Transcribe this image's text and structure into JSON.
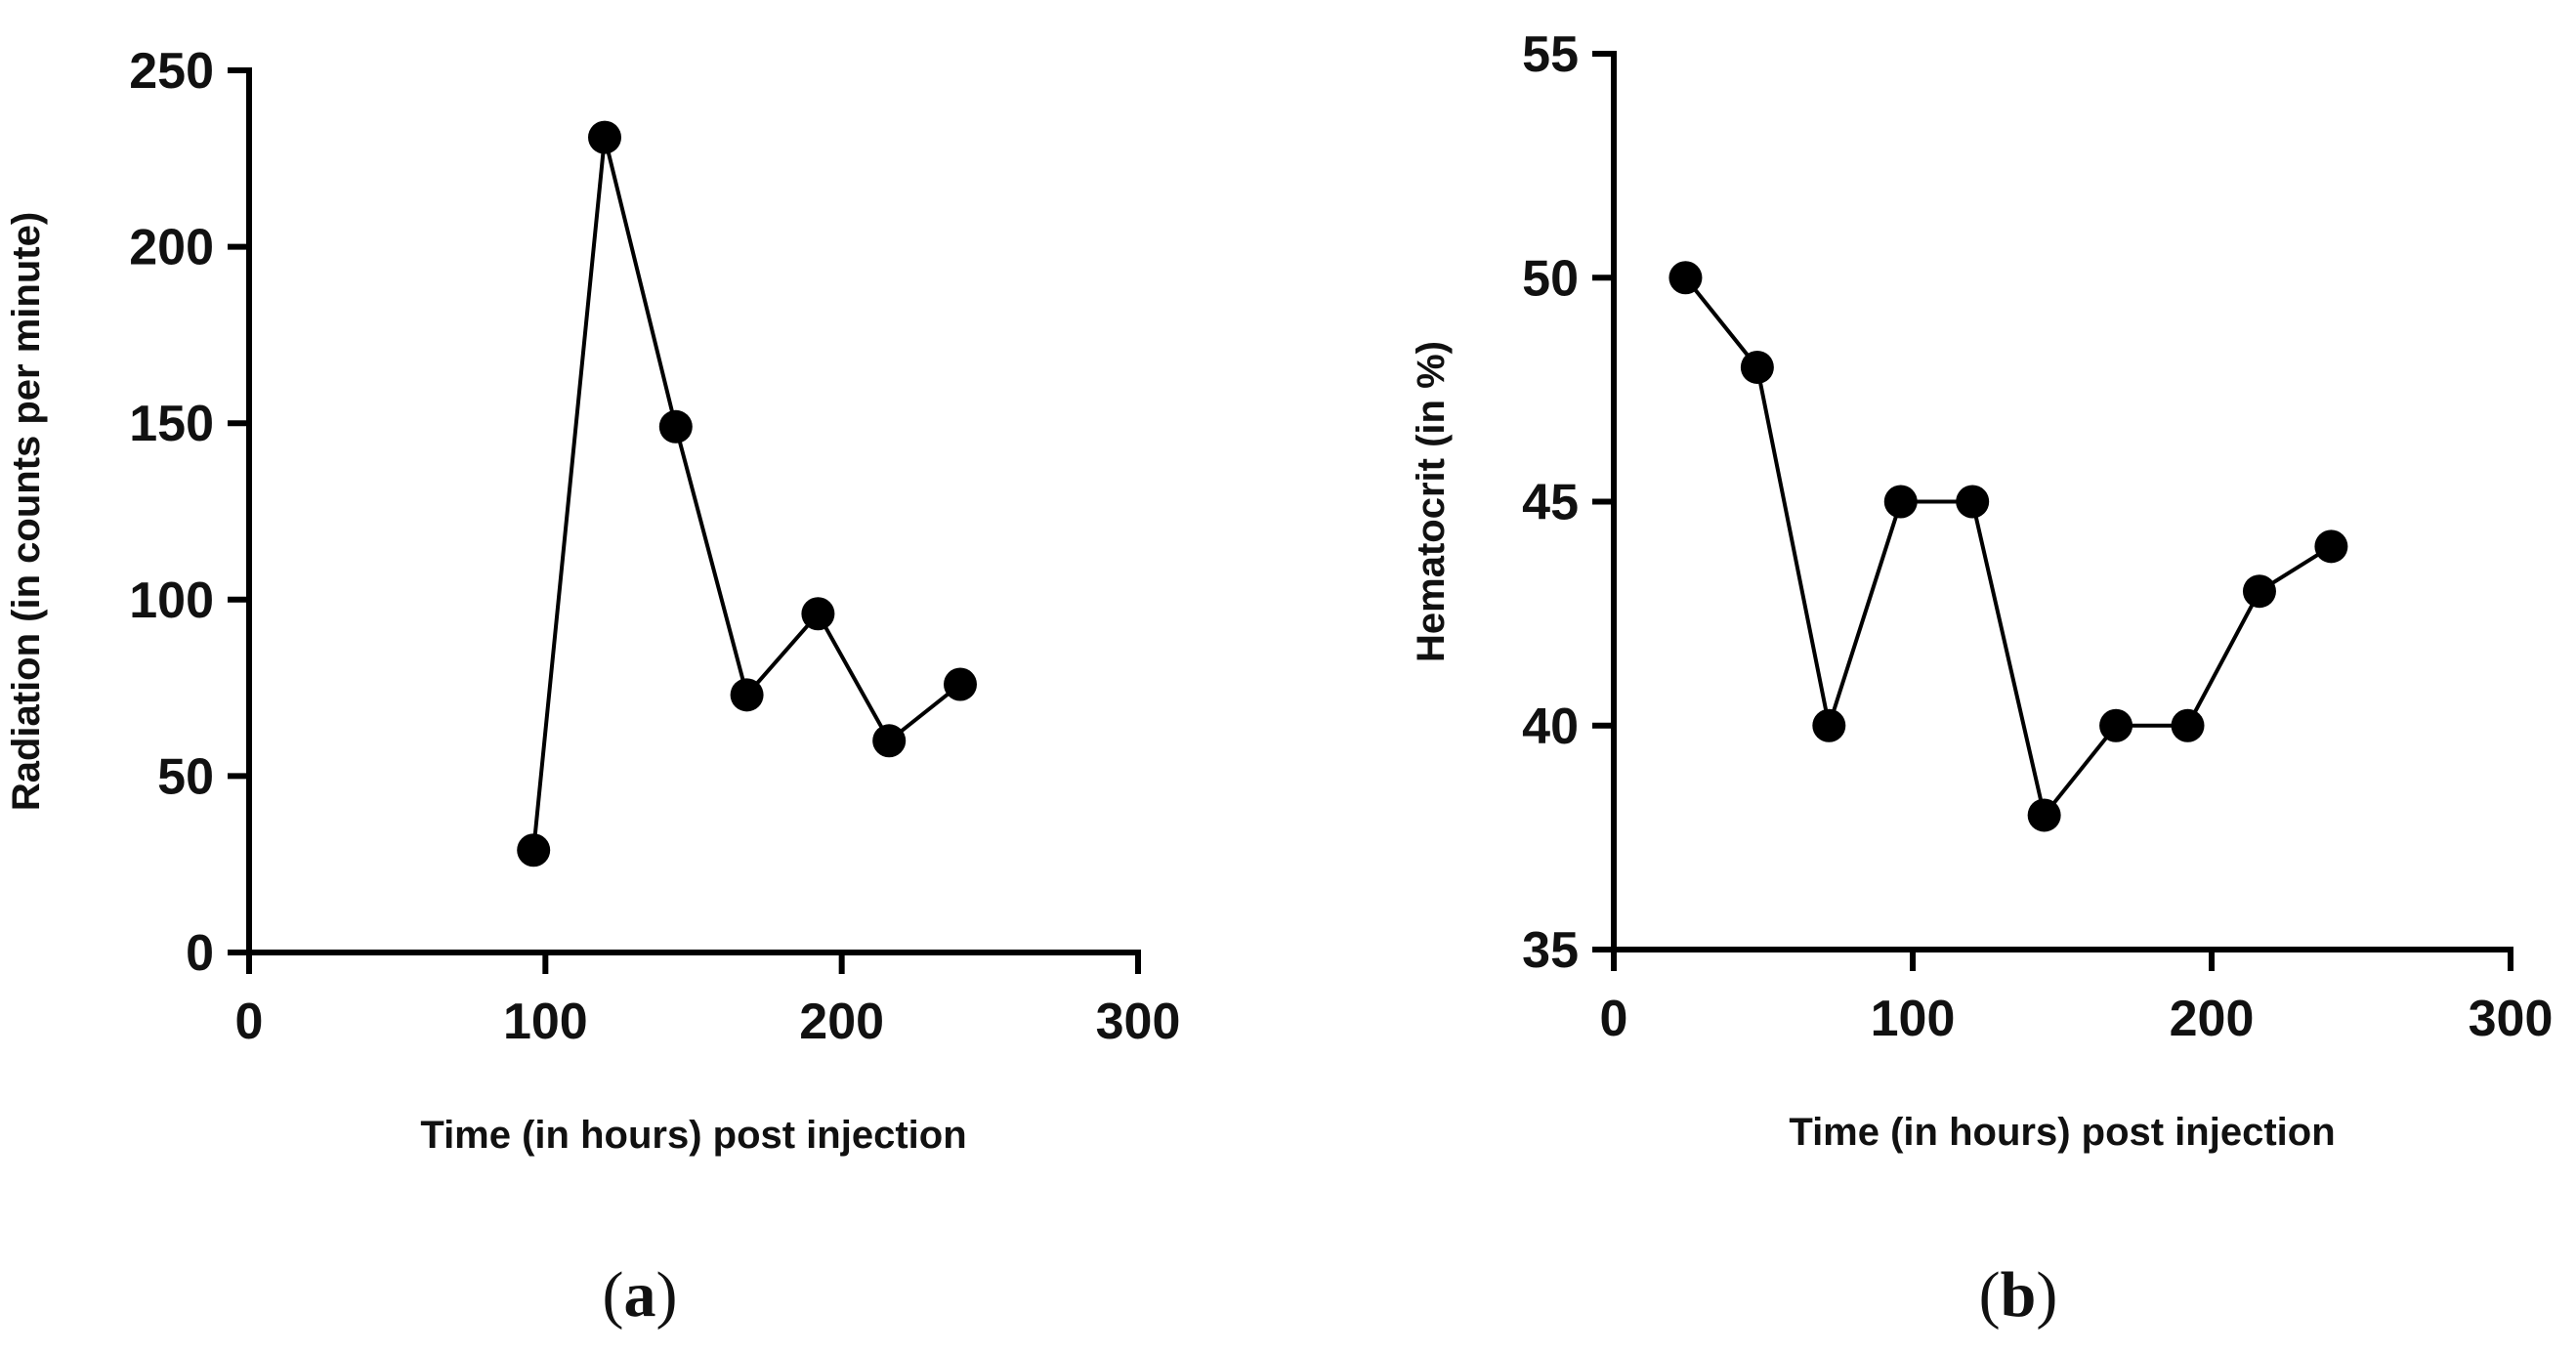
{
  "chart_data": [
    {
      "type": "line",
      "panel_label": "a",
      "title": "",
      "xlabel": "Time (in hours) post injection",
      "ylabel": "Radiation (in counts per minute)",
      "xlim": [
        0,
        300
      ],
      "ylim": [
        0,
        250
      ],
      "xticks": [
        0,
        100,
        200,
        300
      ],
      "yticks": [
        0,
        50,
        100,
        150,
        200,
        250
      ],
      "grid": false,
      "series": [
        {
          "name": "Radiation",
          "x": [
            96,
            120,
            144,
            168,
            192,
            216,
            240
          ],
          "y": [
            29,
            231,
            149,
            73,
            96,
            60,
            76
          ]
        }
      ]
    },
    {
      "type": "line",
      "panel_label": "b",
      "title": "",
      "xlabel": "Time (in hours) post injection",
      "ylabel": "Hematocrit (in %)",
      "xlim": [
        0,
        300
      ],
      "ylim": [
        35,
        55
      ],
      "xticks": [
        0,
        100,
        200,
        300
      ],
      "yticks": [
        35,
        40,
        45,
        50,
        55
      ],
      "grid": false,
      "series": [
        {
          "name": "Hematocrit",
          "x": [
            24,
            48,
            72,
            96,
            120,
            144,
            168,
            192,
            216,
            240
          ],
          "y": [
            50,
            48,
            40,
            45,
            45,
            38,
            40,
            40,
            43,
            44
          ]
        }
      ]
    }
  ]
}
